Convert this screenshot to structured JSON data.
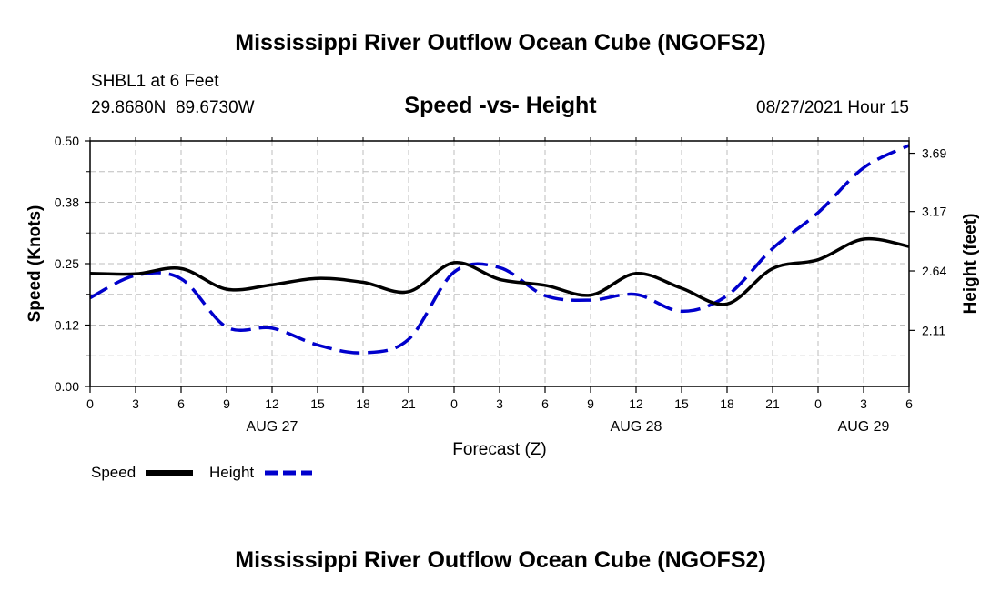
{
  "header": {
    "title_top": "Mississippi River Outflow Ocean Cube (NGOFS2)",
    "title_bottom": "Mississippi River Outflow Ocean Cube (NGOFS2)",
    "station": "SHBL1 at 6 Feet",
    "coords": "29.8680N  89.6730W",
    "subtitle": "Speed -vs- Height",
    "datetime": "08/27/2021 Hour 15"
  },
  "chart_data": {
    "type": "line",
    "title": "Speed -vs- Height",
    "xlabel": "Forecast (Z)",
    "ylabel": "Speed (Knots)",
    "y2label": "Height (feet)",
    "xlim": [
      0,
      54
    ],
    "ylim": [
      0,
      0.5
    ],
    "y2lim": [
      1.61,
      3.8
    ],
    "xticks": [
      0,
      3,
      6,
      9,
      12,
      15,
      18,
      21,
      24,
      27,
      30,
      33,
      36,
      39,
      42,
      45,
      48,
      51,
      54
    ],
    "xtick_labels": [
      "0",
      "3",
      "6",
      "9",
      "12",
      "15",
      "18",
      "21",
      "0",
      "3",
      "6",
      "9",
      "12",
      "15",
      "18",
      "21",
      "0",
      "3",
      "6"
    ],
    "date_labels": [
      {
        "x": 12,
        "label": "AUG 27"
      },
      {
        "x": 36,
        "label": "AUG 28"
      },
      {
        "x": 51,
        "label": "AUG 29"
      }
    ],
    "yticks": [
      0,
      0.125,
      0.25,
      0.375,
      0.5
    ],
    "ytick_labels": [
      "0.00",
      "0.12",
      "0.25",
      "0.38",
      "0.50"
    ],
    "y2ticks": [
      2.11,
      2.64,
      3.17,
      3.69
    ],
    "y2tick_labels": [
      "2.11",
      "2.64",
      "3.17",
      "3.69"
    ],
    "grid": true,
    "series": [
      {
        "name": "Speed",
        "axis": "left",
        "color": "#000000",
        "dash": "solid",
        "x": [
          0,
          3,
          6,
          9,
          12,
          15,
          18,
          21,
          24,
          27,
          30,
          33,
          36,
          39,
          42,
          45,
          48,
          51,
          54
        ],
        "values": [
          0.23,
          0.229,
          0.24,
          0.198,
          0.207,
          0.22,
          0.212,
          0.193,
          0.252,
          0.218,
          0.206,
          0.186,
          0.23,
          0.2,
          0.168,
          0.24,
          0.258,
          0.3,
          0.285
        ]
      },
      {
        "name": "Height",
        "axis": "right",
        "color": "#0000cc",
        "dash": "dashed",
        "x": [
          0,
          3,
          6,
          9,
          12,
          15,
          18,
          21,
          24,
          27,
          30,
          33,
          36,
          39,
          42,
          45,
          48,
          51,
          54
        ],
        "values": [
          2.4,
          2.6,
          2.57,
          2.14,
          2.13,
          1.98,
          1.91,
          2.03,
          2.63,
          2.67,
          2.42,
          2.38,
          2.43,
          2.28,
          2.42,
          2.84,
          3.16,
          3.56,
          3.76
        ]
      }
    ],
    "legend": {
      "placement": "bottom-left",
      "entries": [
        {
          "label": "Speed",
          "color": "#000000",
          "dash": "solid"
        },
        {
          "label": "Height",
          "color": "#0000cc",
          "dash": "dashed"
        }
      ]
    }
  }
}
